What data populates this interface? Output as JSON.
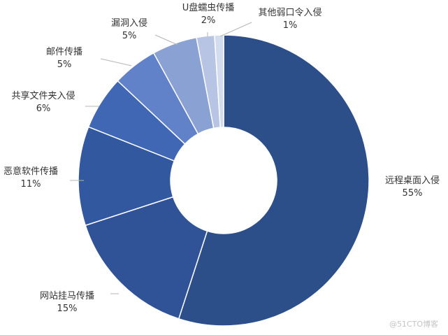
{
  "chart_data": {
    "type": "pie",
    "donut": true,
    "title": "",
    "categories": [
      "远程桌面入侵",
      "网站挂马传播",
      "恶意软件传播",
      "共享文件夹入侵",
      "邮件传播",
      "漏洞入侵",
      "U盘蠕虫传播",
      "其他弱口令入侵"
    ],
    "values": [
      55,
      15,
      11,
      6,
      5,
      5,
      2,
      1
    ],
    "value_labels": [
      "55%",
      "15%",
      "11%",
      "6%",
      "5%",
      "5%",
      "2%",
      "1%"
    ],
    "colors": [
      "#2c4f8a",
      "#2f5396",
      "#3258a0",
      "#3f67b4",
      "#6181c9",
      "#8aa1d4",
      "#b7c4e3",
      "#d3dcee"
    ],
    "start_angle_deg": 0,
    "direction": "clockwise",
    "legend": "none"
  },
  "watermark": "@51CTO博客"
}
